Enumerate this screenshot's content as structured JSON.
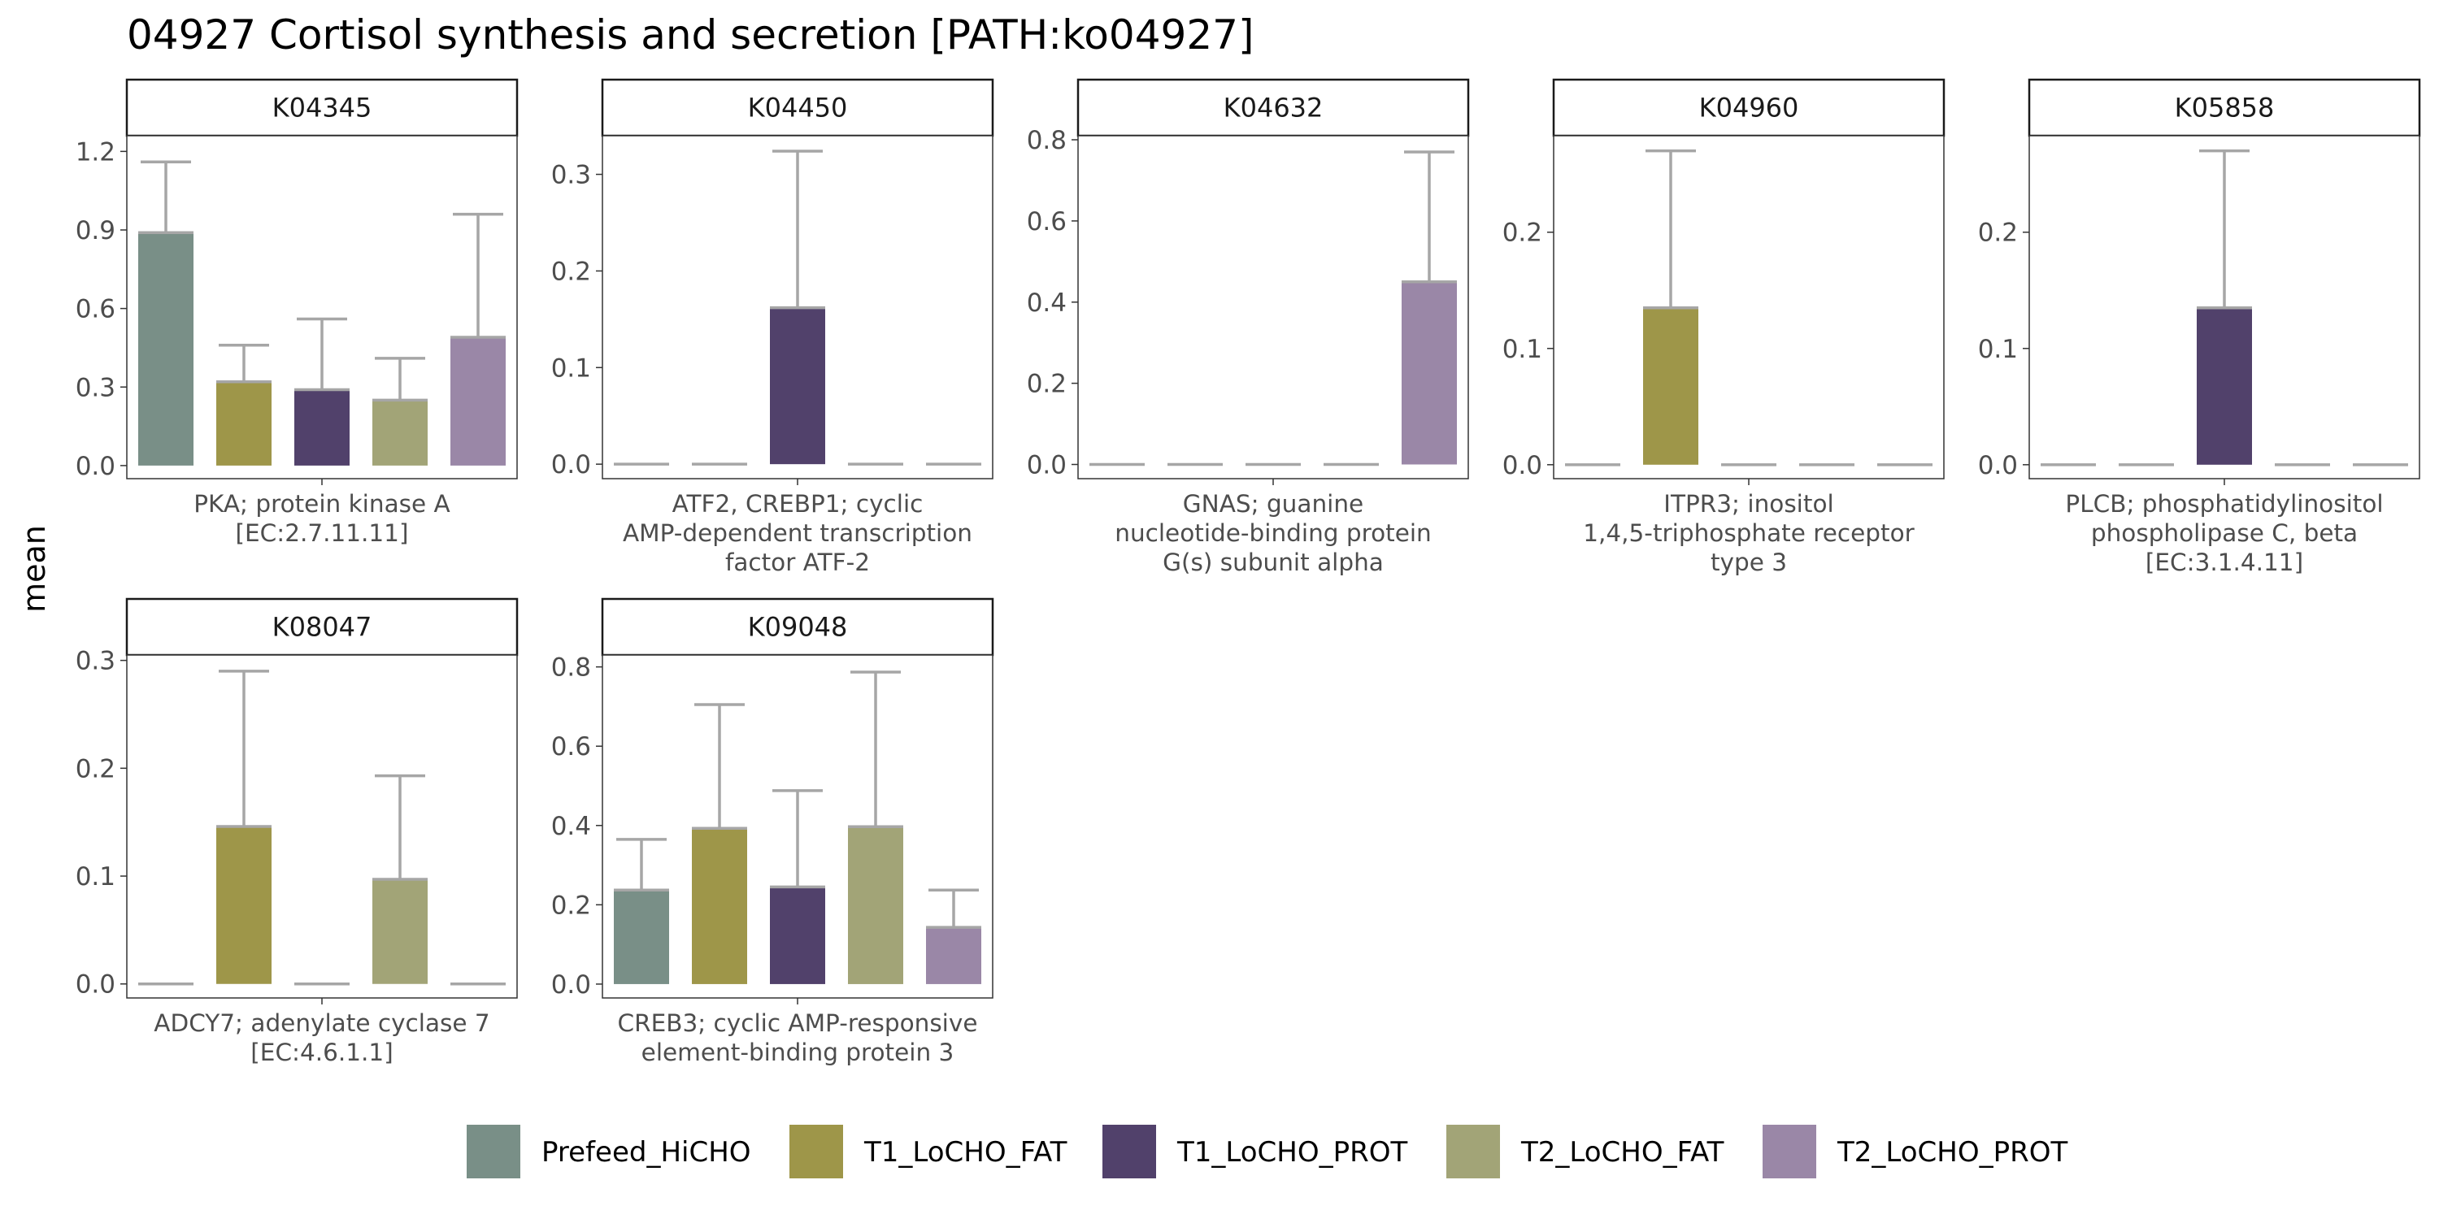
{
  "title": "04927 Cortisol synthesis and secretion [PATH:ko04927]",
  "ylabel": "mean",
  "colors": {
    "Prefeed_HiCHO": "#798f87",
    "T1_LoCHO_FAT": "#9e9649",
    "T1_LoCHO_PROT": "#51416b",
    "T2_LoCHO_FAT": "#a2a477",
    "T2_LoCHO_PROT": "#9a87a7",
    "errorbar": "#a6a6a6"
  },
  "legend": [
    "Prefeed_HiCHO",
    "T1_LoCHO_FAT",
    "T1_LoCHO_PROT",
    "T2_LoCHO_FAT",
    "T2_LoCHO_PROT"
  ],
  "chart_data": [
    {
      "type": "bar",
      "panel": "K04345",
      "xlabel": [
        "PKA; protein kinase A",
        "[EC:2.7.11.11]"
      ],
      "categories": [
        "Prefeed_HiCHO",
        "T1_LoCHO_FAT",
        "T1_LoCHO_PROT",
        "T2_LoCHO_FAT",
        "T2_LoCHO_PROT"
      ],
      "values": [
        0.89,
        0.32,
        0.29,
        0.25,
        0.49
      ],
      "error_upper": [
        1.16,
        0.46,
        0.56,
        0.41,
        0.96
      ],
      "ylim": [
        -0.05,
        1.26
      ],
      "yticks": [
        0.0,
        0.3,
        0.6,
        0.9,
        1.2
      ],
      "yticklabels": [
        "0.0",
        "0.3",
        "0.6",
        "0.9",
        "1.2"
      ]
    },
    {
      "type": "bar",
      "panel": "K04450",
      "xlabel": [
        "ATF2, CREBP1; cyclic",
        "AMP-dependent transcription",
        "factor ATF-2"
      ],
      "categories": [
        "Prefeed_HiCHO",
        "T1_LoCHO_FAT",
        "T1_LoCHO_PROT",
        "T2_LoCHO_FAT",
        "T2_LoCHO_PROT"
      ],
      "values": [
        0,
        0,
        0.162,
        0,
        0
      ],
      "error_upper": [
        null,
        null,
        0.324,
        null,
        null
      ],
      "ylim": [
        -0.015,
        0.34
      ],
      "yticks": [
        0.0,
        0.1,
        0.2,
        0.3
      ],
      "yticklabels": [
        "0.0",
        "0.1",
        "0.2",
        "0.3"
      ]
    },
    {
      "type": "bar",
      "panel": "K04632",
      "xlabel": [
        "GNAS; guanine",
        "nucleotide-binding protein",
        "G(s) subunit alpha"
      ],
      "categories": [
        "Prefeed_HiCHO",
        "T1_LoCHO_FAT",
        "T1_LoCHO_PROT",
        "T2_LoCHO_FAT",
        "T2_LoCHO_PROT"
      ],
      "values": [
        0,
        0,
        0,
        0,
        0.45
      ],
      "error_upper": [
        null,
        null,
        null,
        null,
        0.77
      ],
      "ylim": [
        -0.035,
        0.81
      ],
      "yticks": [
        0.0,
        0.2,
        0.4,
        0.6,
        0.8
      ],
      "yticklabels": [
        "0.0",
        "0.2",
        "0.4",
        "0.6",
        "0.8"
      ]
    },
    {
      "type": "bar",
      "panel": "K04960",
      "xlabel": [
        "ITPR3; inositol",
        "1,4,5-triphosphate receptor",
        "type 3"
      ],
      "categories": [
        "Prefeed_HiCHO",
        "T1_LoCHO_FAT",
        "T1_LoCHO_PROT",
        "T2_LoCHO_FAT",
        "T2_LoCHO_PROT"
      ],
      "values": [
        0,
        0.135,
        0,
        0,
        0
      ],
      "error_upper": [
        null,
        0.27,
        null,
        null,
        null
      ],
      "ylim": [
        -0.012,
        0.283
      ],
      "yticks": [
        0.0,
        0.1,
        0.2
      ],
      "yticklabels": [
        "0.0",
        "0.1",
        "0.2"
      ]
    },
    {
      "type": "bar",
      "panel": "K05858",
      "xlabel": [
        "PLCB; phosphatidylinositol",
        "phospholipase C, beta",
        "[EC:3.1.4.11]"
      ],
      "categories": [
        "Prefeed_HiCHO",
        "T1_LoCHO_FAT",
        "T1_LoCHO_PROT",
        "T2_LoCHO_FAT",
        "T2_LoCHO_PROT"
      ],
      "values": [
        0,
        0,
        0.135,
        0,
        0
      ],
      "error_upper": [
        null,
        null,
        0.27,
        null,
        null
      ],
      "ylim": [
        -0.012,
        0.283
      ],
      "yticks": [
        0.0,
        0.1,
        0.2
      ],
      "yticklabels": [
        "0.0",
        "0.1",
        "0.2"
      ]
    },
    {
      "type": "bar",
      "panel": "K08047",
      "xlabel": [
        "ADCY7; adenylate cyclase 7",
        "[EC:4.6.1.1]"
      ],
      "categories": [
        "Prefeed_HiCHO",
        "T1_LoCHO_FAT",
        "T1_LoCHO_PROT",
        "T2_LoCHO_FAT",
        "T2_LoCHO_PROT"
      ],
      "values": [
        0,
        0.146,
        0,
        0.097,
        0
      ],
      "error_upper": [
        null,
        0.29,
        null,
        0.193,
        null
      ],
      "ylim": [
        -0.013,
        0.305
      ],
      "yticks": [
        0.0,
        0.1,
        0.2,
        0.3
      ],
      "yticklabels": [
        "0.0",
        "0.1",
        "0.2",
        "0.3"
      ]
    },
    {
      "type": "bar",
      "panel": "K09048",
      "xlabel": [
        "CREB3; cyclic AMP-responsive",
        "element-binding protein 3"
      ],
      "categories": [
        "Prefeed_HiCHO",
        "T1_LoCHO_FAT",
        "T1_LoCHO_PROT",
        "T2_LoCHO_FAT",
        "T2_LoCHO_PROT"
      ],
      "values": [
        0.237,
        0.393,
        0.245,
        0.397,
        0.143
      ],
      "error_upper": [
        0.365,
        0.705,
        0.488,
        0.787,
        0.237
      ],
      "ylim": [
        -0.035,
        0.83
      ],
      "yticks": [
        0.0,
        0.2,
        0.4,
        0.6,
        0.8
      ],
      "yticklabels": [
        "0.0",
        "0.2",
        "0.4",
        "0.6",
        "0.8"
      ]
    }
  ]
}
